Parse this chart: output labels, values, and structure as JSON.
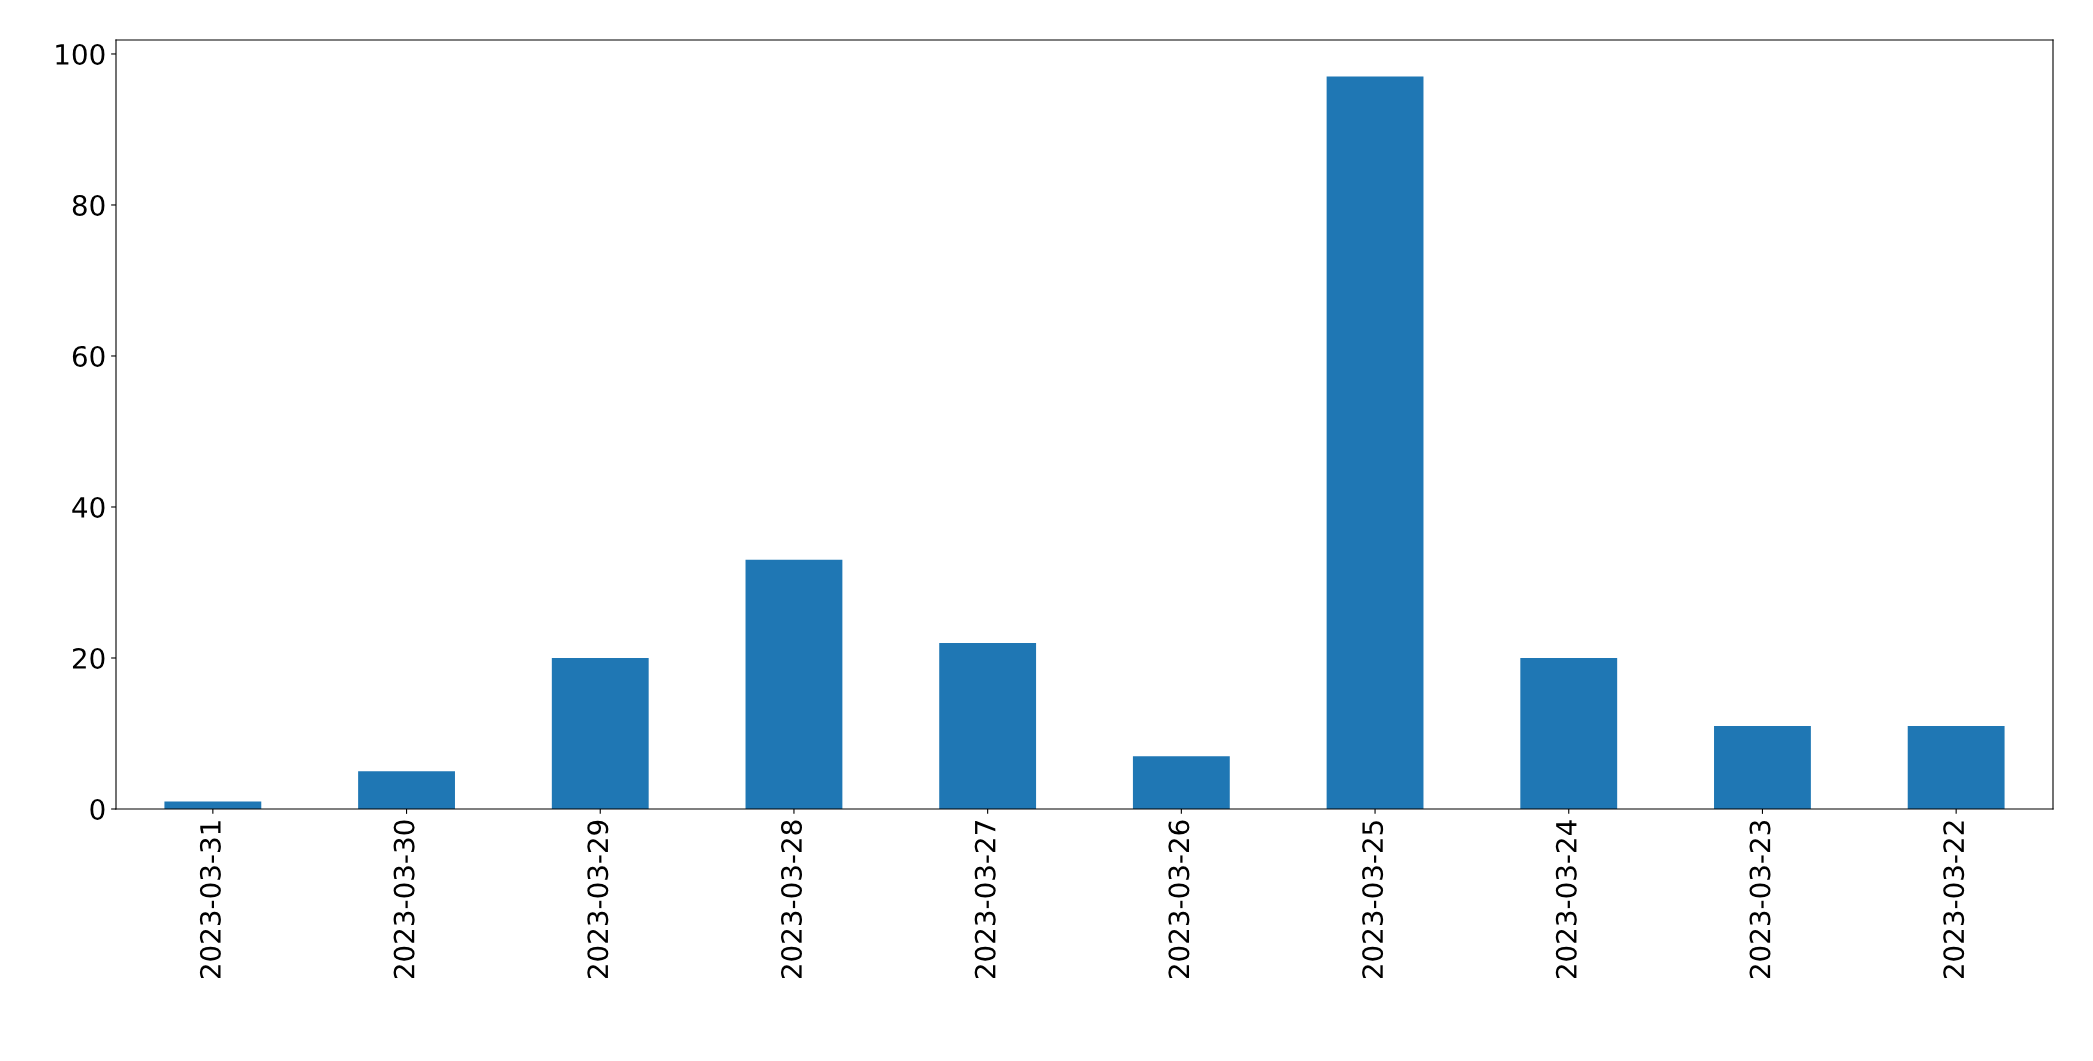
{
  "chart_data": {
    "type": "bar",
    "categories": [
      "2023-03-31",
      "2023-03-30",
      "2023-03-29",
      "2023-03-28",
      "2023-03-27",
      "2023-03-26",
      "2023-03-25",
      "2023-03-24",
      "2023-03-23",
      "2023-03-22"
    ],
    "values": [
      1,
      5,
      20,
      33,
      22,
      7,
      97,
      20,
      11,
      11
    ],
    "color": "#1f77b4",
    "ylim": [
      0,
      101.85
    ],
    "yticks": [
      0,
      20,
      40,
      60,
      80,
      100
    ],
    "grid": false,
    "legend": false
  }
}
